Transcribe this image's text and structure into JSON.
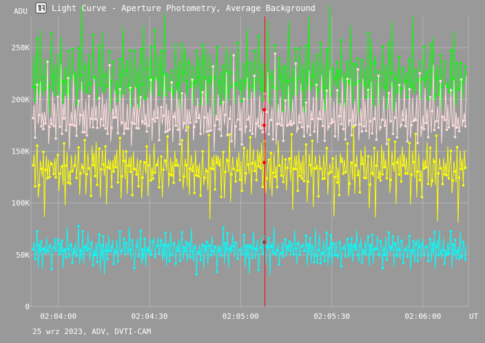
{
  "window": {
    "title": "Light Curve - Aperture Photometry, Average Background",
    "icon": "tangra-app-icon"
  },
  "footer": {
    "caption": "25 wrz 2023, ADV, DVTI-CAM"
  },
  "colors": {
    "background": "#999999",
    "grid": "#b4b4b4",
    "text": "#ffffff",
    "cursor": "#ff0000"
  },
  "chart_data": {
    "type": "scatter",
    "title": "Light Curve - Aperture Photometry, Average Background",
    "ylabel": "ADU",
    "xlabel": "UT",
    "ylim": [
      0,
      280000
    ],
    "xlim": [
      "02:03:51",
      "02:06:15"
    ],
    "yticks": [
      {
        "value": 0,
        "label": "0"
      },
      {
        "value": 50000,
        "label": "50K"
      },
      {
        "value": 100000,
        "label": "100K"
      },
      {
        "value": 150000,
        "label": "150K"
      },
      {
        "value": 200000,
        "label": "200K"
      },
      {
        "value": 250000,
        "label": "250K"
      }
    ],
    "xticks": [
      "02:04:00",
      "02:04:30",
      "02:05:00",
      "02:05:30",
      "02:06:00"
    ],
    "grid": true,
    "connected_points": true,
    "cursor_time": "02:05:08",
    "series": [
      {
        "color": "#00ff00",
        "mean": 212000,
        "spread": 15000,
        "samples": [
          215000,
          232000,
          198000,
          221000,
          247000,
          206000,
          219000,
          268000,
          210000,
          201000,
          226000,
          237000,
          212000,
          208000,
          240000,
          195000,
          217000,
          224000,
          250000,
          209000
        ]
      },
      {
        "color": "#ffdddd",
        "mean": 180000,
        "spread": 13000,
        "samples": [
          178000,
          193000,
          165000,
          186000,
          205000,
          172000,
          181000,
          219000,
          170000,
          188000,
          176000,
          196000,
          168000,
          183000,
          224000,
          160000,
          179000,
          190000,
          174000,
          212000
        ]
      },
      {
        "color": "#ffff00",
        "mean": 133000,
        "spread": 13000,
        "samples": [
          130000,
          148000,
          118000,
          137000,
          152000,
          109000,
          126000,
          143000,
          135000,
          122000,
          160000,
          98000,
          131000,
          146000,
          128000,
          139000,
          115000,
          150000,
          133000,
          141000
        ]
      },
      {
        "color": "#00ffff",
        "mean": 55000,
        "spread": 8000,
        "samples": [
          54000,
          62000,
          47000,
          58000,
          69000,
          43000,
          56000,
          51000,
          65000,
          38000,
          57000,
          60000,
          49000,
          72000,
          53000,
          46000,
          59000,
          63000,
          41000,
          55000
        ]
      }
    ],
    "cursor_values": [
      190000,
      175000,
      139000,
      62000
    ]
  }
}
